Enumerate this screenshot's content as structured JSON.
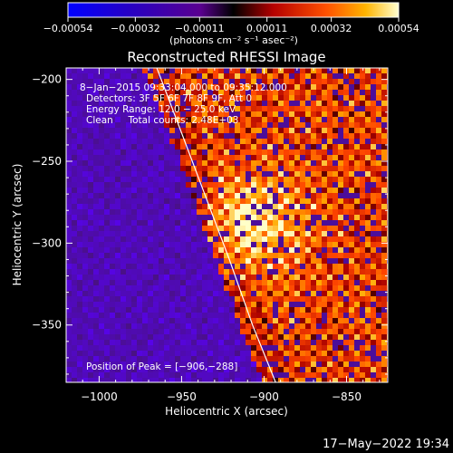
{
  "chart_data": {
    "type": "heatmap",
    "title": "Reconstructed RHESSI Image",
    "xlabel": "Heliocentric X (arcsec)",
    "ylabel": "Heliocentric Y (arcsec)",
    "xlim": [
      -1020,
      -825
    ],
    "ylim": [
      -385,
      -193
    ],
    "x_ticks": [
      -1000,
      -950,
      -900,
      -850
    ],
    "x_tick_labels": [
      "−1000",
      "−950",
      "−900",
      "−850"
    ],
    "y_ticks": [
      -200,
      -250,
      -300,
      -350
    ],
    "y_tick_labels": [
      "−200",
      "−250",
      "−300",
      "−350"
    ],
    "colorbar": {
      "min": -0.00054,
      "max": 0.00054,
      "ticks": [
        -0.00054,
        -0.00032,
        -0.00011,
        0.00011,
        0.00032,
        0.00054
      ],
      "tick_labels": [
        "−0.00054",
        "−0.00032",
        "−0.00011",
        "0.00011",
        "0.00032",
        "0.00054"
      ],
      "unit_label": "(photons cm⁻² s⁻¹ asec⁻²)"
    },
    "annotations": [
      "8−Jan−2015 09:33:04.000 to 09:35:12.000",
      "Detectors: 3F 5F 6F 7F 8F 9F, Att 0",
      "Energy Range: 12.0 − 25.0 keV",
      "Clean     Total counts: 2.48E+03"
    ],
    "peak_label": "Position of Peak = [−906,−288]",
    "peak": {
      "x": -906,
      "y": -288
    },
    "limb": [
      [
        -965,
        -193
      ],
      [
        -951,
        -230
      ],
      [
        -936,
        -270
      ],
      [
        -921,
        -310
      ],
      [
        -907,
        -350
      ],
      [
        -893,
        -385
      ]
    ],
    "date_stamp": "17−May−2022 19:34"
  }
}
